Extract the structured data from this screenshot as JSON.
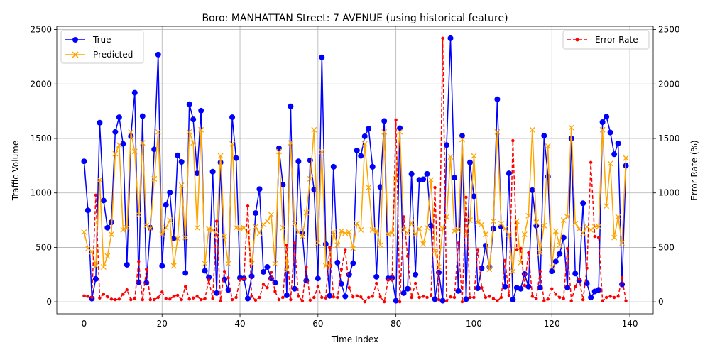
{
  "chart_data": {
    "type": "line",
    "title": "Boro: MANHATTAN Street: 7 AVENUE (using historical feature)",
    "xlabel": "Time Index",
    "ylabel": "Traffic Volume",
    "y2label": "Error Rate (%)",
    "xlim": [
      -7,
      146
    ],
    "ylim": [
      -110,
      2530
    ],
    "y2lim": [
      -110,
      2530
    ],
    "xticks": [
      0,
      20,
      40,
      60,
      80,
      100,
      120,
      140
    ],
    "yticks": [
      0,
      500,
      1000,
      1500,
      2000,
      2500
    ],
    "y2ticks": [
      0,
      500,
      1000,
      1500,
      2000,
      2500
    ],
    "grid": true,
    "legend_left": "upper-left",
    "legend_right": "upper-right",
    "colors": {
      "true": "#0000ff",
      "predicted": "#ffa500",
      "error": "#ff0000"
    },
    "series": [
      {
        "name": "True",
        "axis": "left",
        "marker": "circle",
        "values": [
          1290,
          840,
          30,
          210,
          1645,
          930,
          680,
          730,
          1560,
          1695,
          1450,
          340,
          1520,
          1920,
          180,
          1705,
          175,
          680,
          1400,
          2270,
          330,
          890,
          1005,
          580,
          1345,
          1285,
          265,
          1815,
          1675,
          1180,
          1755,
          285,
          225,
          1195,
          80,
          1280,
          205,
          110,
          1695,
          1320,
          220,
          215,
          30,
          235,
          815,
          1035,
          275,
          320,
          215,
          175,
          1410,
          1075,
          60,
          1795,
          120,
          1290,
          625,
          195,
          1300,
          1030,
          215,
          2245,
          530,
          55,
          1240,
          360,
          165,
          50,
          250,
          355,
          1390,
          1340,
          1520,
          1590,
          1240,
          230,
          1055,
          1660,
          215,
          220,
          10,
          1595,
          80,
          120,
          1175,
          250,
          1120,
          1125,
          1175,
          700,
          25,
          270,
          10,
          1440,
          2420,
          1140,
          100,
          1525,
          25,
          1280,
          970,
          125,
          310,
          515,
          320,
          670,
          1860,
          690,
          140,
          1180,
          20,
          130,
          120,
          255,
          140,
          1025,
          700,
          130,
          1525,
          1150,
          280,
          370,
          440,
          590,
          130,
          1500,
          260,
          195,
          905,
          170,
          40,
          95,
          110,
          1650,
          1700,
          1555,
          1355,
          1455,
          160,
          1250
        ]
      },
      {
        "name": "Predicted",
        "axis": "left",
        "marker": "x",
        "values": [
          640,
          490,
          460,
          330,
          1120,
          320,
          420,
          620,
          1360,
          1440,
          660,
          680,
          1560,
          1380,
          800,
          1460,
          700,
          670,
          1130,
          1560,
          620,
          680,
          750,
          330,
          580,
          1070,
          590,
          1560,
          1460,
          680,
          1580,
          350,
          670,
          660,
          610,
          1340,
          600,
          350,
          1450,
          680,
          670,
          680,
          640,
          350,
          690,
          630,
          710,
          740,
          800,
          350,
          1380,
          680,
          290,
          1460,
          720,
          640,
          600,
          820,
          1130,
          1580,
          540,
          1380,
          330,
          330,
          640,
          520,
          650,
          630,
          640,
          490,
          720,
          660,
          1450,
          1050,
          660,
          650,
          520,
          1560,
          620,
          630,
          1130,
          1560,
          660,
          630,
          730,
          620,
          670,
          530,
          680,
          1120,
          470,
          320,
          670,
          780,
          1330,
          650,
          660,
          1490,
          610,
          750,
          1340,
          730,
          710,
          620,
          300,
          740,
          1560,
          720,
          670,
          620,
          280,
          740,
          360,
          620,
          790,
          1580,
          730,
          450,
          700,
          1430,
          320,
          650,
          520,
          750,
          780,
          1600,
          720,
          670,
          630,
          690,
          660,
          690,
          690,
          1580,
          880,
          1270,
          590,
          780,
          540,
          1320
        ]
      },
      {
        "name": "Error Rate",
        "axis": "right",
        "marker": "dot",
        "dashed": true,
        "values": [
          55,
          50,
          40,
          980,
          35,
          70,
          45,
          25,
          20,
          25,
          70,
          110,
          20,
          30,
          370,
          20,
          300,
          20,
          20,
          40,
          90,
          30,
          25,
          50,
          60,
          20,
          140,
          25,
          35,
          50,
          20,
          30,
          200,
          30,
          740,
          10,
          280,
          220,
          20,
          40,
          200,
          210,
          880,
          50,
          15,
          40,
          160,
          130,
          270,
          95,
          20,
          40,
          520,
          20,
          540,
          50,
          10,
          320,
          15,
          40,
          140,
          40,
          35,
          500,
          45,
          40,
          300,
          480,
          130,
          45,
          55,
          45,
          0,
          40,
          50,
          170,
          45,
          0,
          200,
          200,
          1670,
          0,
          780,
          420,
          40,
          170,
          40,
          50,
          40,
          60,
          1050,
          20,
          2420,
          10,
          45,
          40,
          540,
          0,
          960,
          40,
          40,
          480,
          130,
          40,
          50,
          30,
          10,
          40,
          380,
          60,
          1480,
          480,
          490,
          150,
          450,
          50,
          30,
          280,
          10,
          25,
          120,
          70,
          40,
          30,
          490,
          10,
          140,
          210,
          20,
          310,
          1280,
          600,
          590,
          10,
          40,
          50,
          40,
          50,
          220,
          10
        ]
      }
    ]
  }
}
